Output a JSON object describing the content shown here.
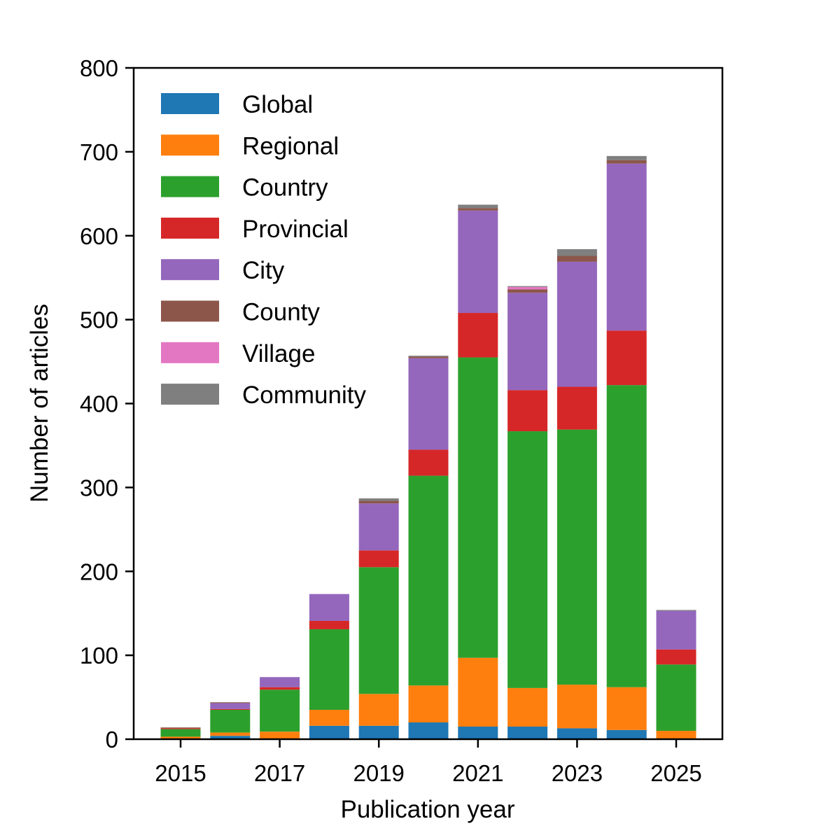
{
  "chart_data": {
    "type": "bar",
    "stacked": true,
    "xlabel": "Publication year",
    "ylabel": "Number of articles",
    "ylim": [
      0,
      800
    ],
    "yticks": [
      0,
      100,
      200,
      300,
      400,
      500,
      600,
      700,
      800
    ],
    "xticks": [
      "2015",
      "2017",
      "2019",
      "2021",
      "2023",
      "2025"
    ],
    "categories": [
      "2015",
      "2016",
      "2017",
      "2018",
      "2019",
      "2020",
      "2021",
      "2022",
      "2023",
      "2024",
      "2025"
    ],
    "legend_position": "top-left",
    "grid": false,
    "series": [
      {
        "name": "Global",
        "color": "#1f77b4",
        "values": [
          0,
          4,
          0,
          16,
          16,
          20,
          15,
          15,
          13,
          11,
          0
        ]
      },
      {
        "name": "Regional",
        "color": "#ff7f0e",
        "values": [
          3,
          4,
          9,
          19,
          38,
          44,
          82,
          46,
          52,
          51,
          10
        ]
      },
      {
        "name": "Country",
        "color": "#2ca02c",
        "values": [
          9,
          27,
          50,
          96,
          151,
          250,
          358,
          306,
          304,
          360,
          79
        ]
      },
      {
        "name": "Provincial",
        "color": "#d62728",
        "values": [
          1,
          1,
          3,
          10,
          20,
          31,
          53,
          49,
          51,
          65,
          18
        ]
      },
      {
        "name": "City",
        "color": "#9467bd",
        "values": [
          0,
          7,
          12,
          32,
          56,
          109,
          122,
          116,
          149,
          199,
          46
        ]
      },
      {
        "name": "County",
        "color": "#8c564b",
        "values": [
          1,
          1,
          0,
          0,
          3,
          2,
          3,
          4,
          7,
          4,
          0
        ]
      },
      {
        "name": "Village",
        "color": "#e377c2",
        "values": [
          0,
          0,
          0,
          0,
          0,
          0,
          0,
          3,
          0,
          0,
          0
        ]
      },
      {
        "name": "Community",
        "color": "#7f7f7f",
        "values": [
          0,
          0,
          0,
          0,
          3,
          1,
          4,
          1,
          8,
          5,
          1
        ]
      }
    ]
  }
}
